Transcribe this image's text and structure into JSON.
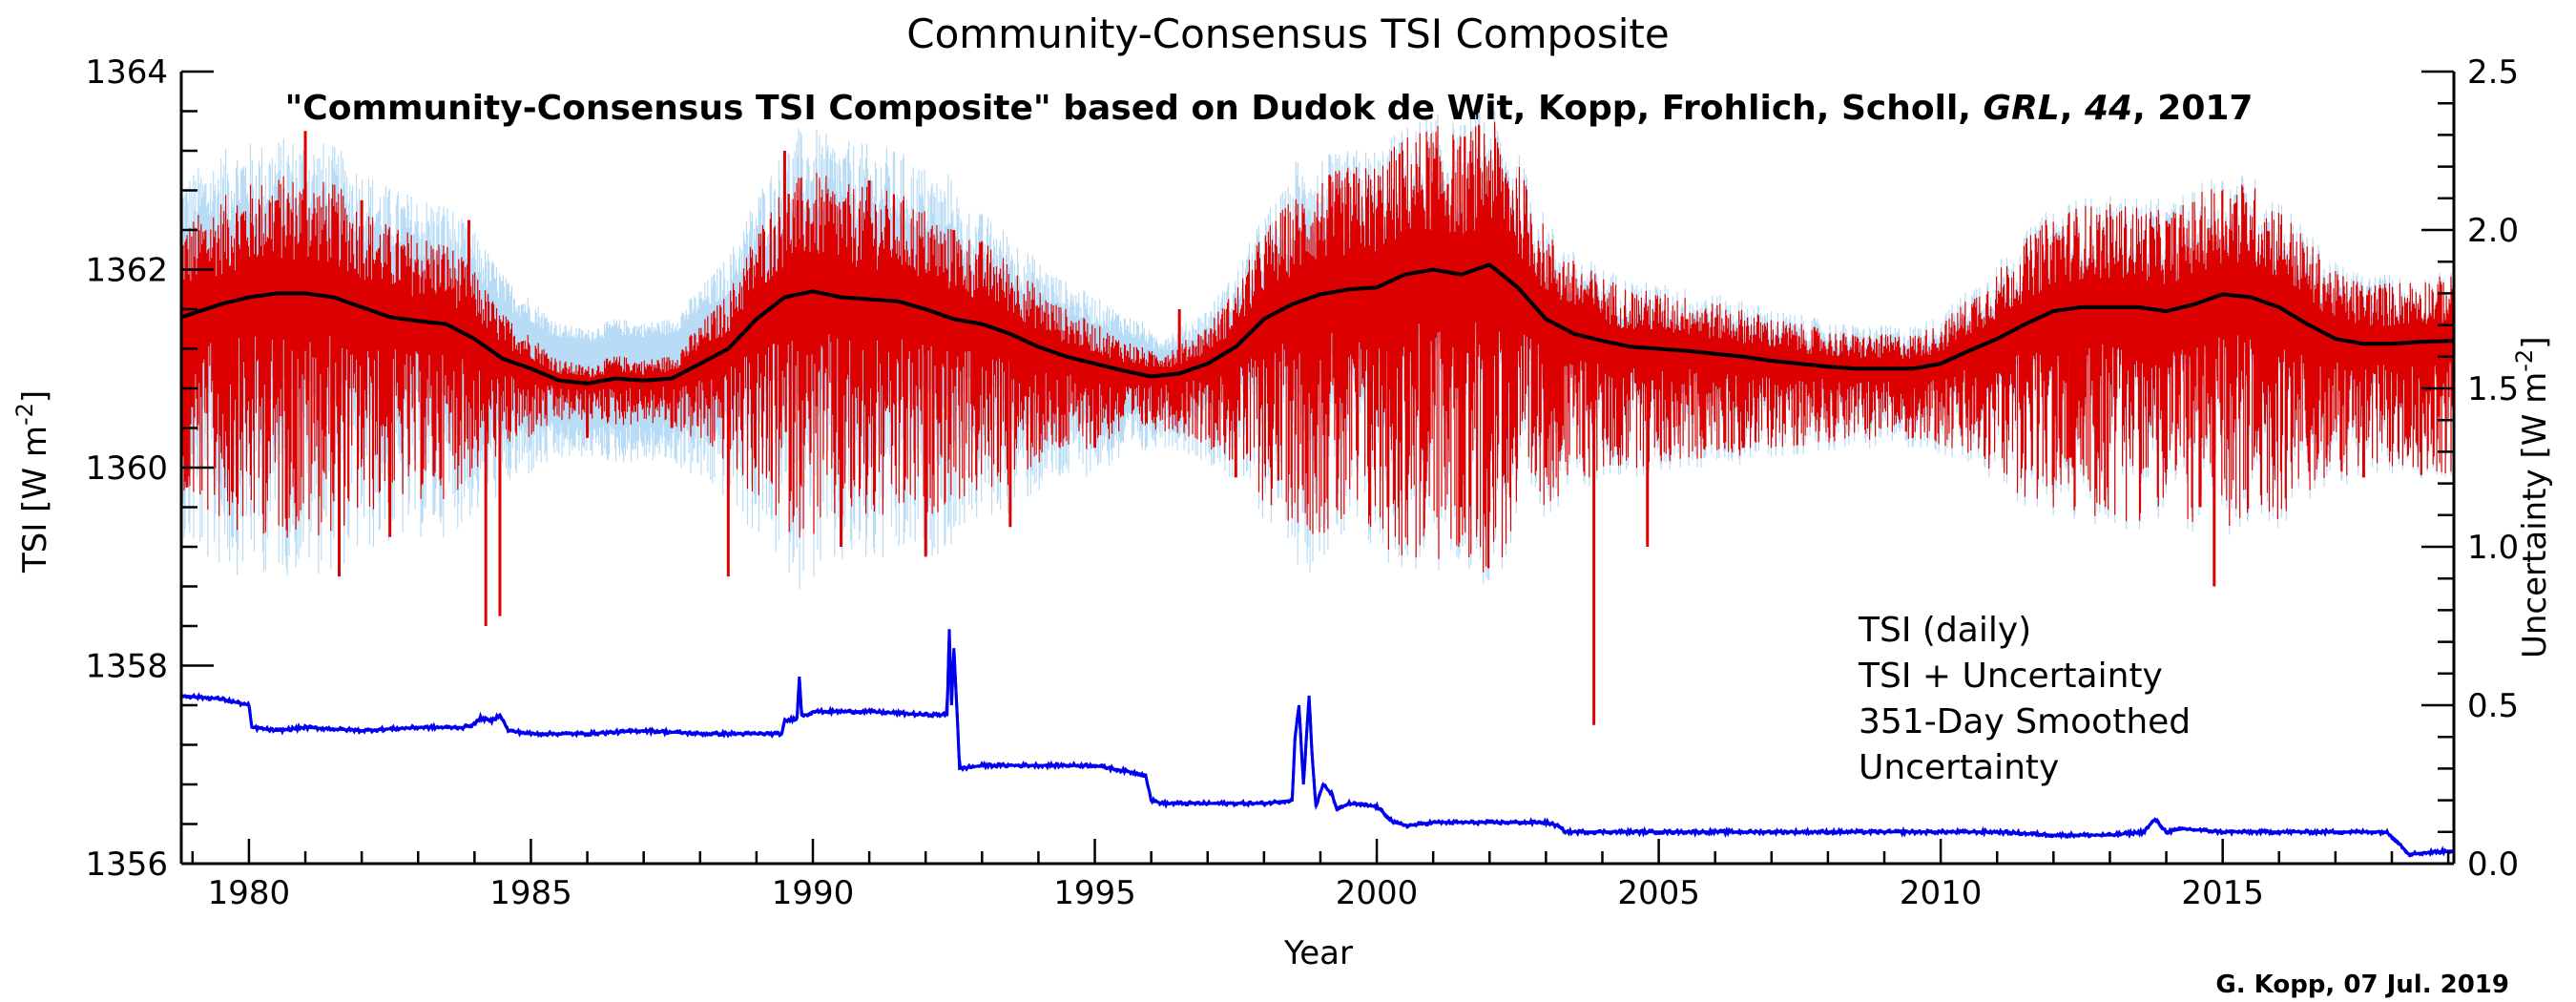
{
  "chart_data": {
    "type": "line",
    "title": "Community-Consensus TSI Composite",
    "subtitle": {
      "pre": "\"Community-Consensus TSI Composite\" based on Dudok de Wit, Kopp, Frohlich, Scholl, ",
      "journal": "GRL",
      "sep": ", ",
      "volume": "44",
      "post": ", 2017"
    },
    "xlabel": "Year",
    "ylabel": {
      "main": "TSI [W m",
      "exp": "-2",
      "close": "]"
    },
    "y2label": {
      "main": "Uncertainty [W m",
      "exp": "-2",
      "close": "]"
    },
    "credit": "G. Kopp, 07 Jul. 2019",
    "xlim": [
      1978.8,
      2019.1
    ],
    "ylim": [
      1356,
      1364
    ],
    "y2lim": [
      0,
      2.5
    ],
    "xticks": [
      "1980",
      "1985",
      "1990",
      "1995",
      "2000",
      "2005",
      "2010",
      "2015"
    ],
    "yticks": [
      "1356",
      "1358",
      "1360",
      "1362",
      "1364"
    ],
    "y2ticks": [
      "0.0",
      "0.5",
      "1.0",
      "1.5",
      "2.0",
      "2.5"
    ],
    "legend": {
      "position": "right-middle",
      "entries": [
        {
          "label": "TSI (daily)",
          "color": "#dd0000"
        },
        {
          "label": "TSI + Uncertainty",
          "color": "#b8dcf5"
        },
        {
          "label": "351-Day Smoothed",
          "color": "#000000"
        },
        {
          "label": "Uncertainty",
          "color": "#0000ee"
        }
      ]
    },
    "series": [
      {
        "name": "351-Day Smoothed",
        "axis": "left",
        "color": "#000000",
        "x": [
          1978.8,
          1979.5,
          1980,
          1980.5,
          1981,
          1981.5,
          1982,
          1982.5,
          1983,
          1983.5,
          1984,
          1984.5,
          1985,
          1985.5,
          1986,
          1986.5,
          1987,
          1987.5,
          1988,
          1988.5,
          1989,
          1989.5,
          1990,
          1990.5,
          1991,
          1991.5,
          1992,
          1992.5,
          1993,
          1993.5,
          1994,
          1994.5,
          1995,
          1995.5,
          1996,
          1996.5,
          1997,
          1997.5,
          1998,
          1998.5,
          1999,
          1999.5,
          2000,
          2000.5,
          2001,
          2001.5,
          2002,
          2002.5,
          2003,
          2003.5,
          2004,
          2004.5,
          2005,
          2005.5,
          2006,
          2006.5,
          2007,
          2007.5,
          2008,
          2008.5,
          2009,
          2009.5,
          2010,
          2010.5,
          2011,
          2011.5,
          2012,
          2012.5,
          2013,
          2013.5,
          2014,
          2014.5,
          2015,
          2015.5,
          2016,
          2016.5,
          2017,
          2017.5,
          2018,
          2018.5,
          2019,
          2019.1
        ],
        "values": [
          1361.52,
          1361.65,
          1361.72,
          1361.76,
          1361.76,
          1361.72,
          1361.62,
          1361.52,
          1361.48,
          1361.45,
          1361.3,
          1361.1,
          1361.0,
          1360.88,
          1360.85,
          1360.9,
          1360.88,
          1360.9,
          1361.05,
          1361.2,
          1361.5,
          1361.72,
          1361.78,
          1361.72,
          1361.7,
          1361.68,
          1361.6,
          1361.5,
          1361.45,
          1361.35,
          1361.22,
          1361.12,
          1361.05,
          1360.98,
          1360.92,
          1360.95,
          1361.05,
          1361.22,
          1361.5,
          1361.65,
          1361.75,
          1361.8,
          1361.82,
          1361.95,
          1362.0,
          1361.95,
          1362.05,
          1361.82,
          1361.5,
          1361.35,
          1361.28,
          1361.22,
          1361.2,
          1361.18,
          1361.15,
          1361.12,
          1361.08,
          1361.05,
          1361.02,
          1361.0,
          1361.0,
          1361.0,
          1361.05,
          1361.18,
          1361.3,
          1361.45,
          1361.58,
          1361.62,
          1361.62,
          1361.62,
          1361.58,
          1361.65,
          1361.75,
          1361.72,
          1361.62,
          1361.45,
          1361.3,
          1361.25,
          1361.25,
          1361.27,
          1361.28,
          1361.28
        ]
      },
      {
        "name": "Uncertainty",
        "axis": "right",
        "color": "#0000ee",
        "x": [
          1978.8,
          1979.5,
          1980,
          1980.05,
          1980.5,
          1981,
          1982,
          1983,
          1983.8,
          1984,
          1984.1,
          1984.3,
          1984.45,
          1984.6,
          1985,
          1986,
          1987,
          1988,
          1989,
          1989.45,
          1989.5,
          1989.72,
          1989.76,
          1989.8,
          1989.9,
          1990,
          1991,
          1992,
          1992.38,
          1992.42,
          1992.46,
          1992.5,
          1992.56,
          1992.6,
          1993,
          1994,
          1995,
          1995.9,
          1996,
          1996.2,
          1997,
          1998,
          1998.5,
          1998.55,
          1998.62,
          1998.7,
          1998.8,
          1998.85,
          1998.92,
          1999.05,
          1999.2,
          1999.3,
          1999.5,
          2000,
          2000.3,
          2000.55,
          2001,
          2002,
          2003,
          2003.2,
          2003.35,
          2004,
          2005,
          2006,
          2007,
          2008,
          2009,
          2010,
          2011,
          2012,
          2013,
          2013.6,
          2013.8,
          2014,
          2014.3,
          2015,
          2016,
          2017,
          2017.9,
          2018.1,
          2018.3,
          2019,
          2019.1
        ],
        "values": [
          0.53,
          0.52,
          0.5,
          0.43,
          0.42,
          0.43,
          0.42,
          0.43,
          0.43,
          0.44,
          0.46,
          0.45,
          0.47,
          0.42,
          0.41,
          0.41,
          0.42,
          0.41,
          0.41,
          0.41,
          0.45,
          0.46,
          0.59,
          0.47,
          0.47,
          0.48,
          0.48,
          0.47,
          0.47,
          0.74,
          0.5,
          0.68,
          0.47,
          0.3,
          0.31,
          0.31,
          0.31,
          0.28,
          0.2,
          0.19,
          0.19,
          0.19,
          0.2,
          0.4,
          0.5,
          0.25,
          0.53,
          0.35,
          0.18,
          0.25,
          0.22,
          0.17,
          0.19,
          0.18,
          0.13,
          0.12,
          0.13,
          0.13,
          0.13,
          0.12,
          0.1,
          0.1,
          0.1,
          0.1,
          0.1,
          0.1,
          0.1,
          0.1,
          0.1,
          0.09,
          0.09,
          0.1,
          0.14,
          0.1,
          0.11,
          0.1,
          0.1,
          0.1,
          0.1,
          0.07,
          0.03,
          0.04,
          0.04
        ]
      },
      {
        "name": "TSI (daily)",
        "axis": "left",
        "color": "#dd0000",
        "style": "daily spikes around the 351-day smoothed curve",
        "x": [
          1978.9,
          1980.5,
          1981.0,
          1981.6,
          1982.0,
          1982.5,
          1983.9,
          1984.2,
          1984.45,
          1986.0,
          1987.5,
          1988.5,
          1989.5,
          1989.7,
          1990.5,
          1991.0,
          1991.3,
          1992.0,
          1992.5,
          1993.5,
          1995.0,
          1996.5,
          1997.5,
          1999.0,
          2000.2,
          2000.8,
          2001.5,
          2002.0,
          2003.0,
          2003.85,
          2004.8,
          2005.5,
          2006.5,
          2008.0,
          2009.5,
          2011.5,
          2012.3,
          2013.5,
          2014.6,
          2014.85,
          2015.5,
          2016.5,
          2017.5,
          2018.5
        ],
        "values": [
          1359.8,
          1362.7,
          1363.4,
          1358.9,
          1362.7,
          1359.3,
          1362.5,
          1358.4,
          1358.5,
          1360.3,
          1360.4,
          1358.9,
          1363.2,
          1362.1,
          1359.2,
          1362.9,
          1360.6,
          1359.1,
          1362.4,
          1359.4,
          1360.2,
          1361.6,
          1359.9,
          1362.3,
          1359.6,
          1362.8,
          1359.6,
          1362.9,
          1360.0,
          1357.4,
          1359.2,
          1361.5,
          1360.2,
          1361.1,
          1360.5,
          1362.0,
          1360.1,
          1361.7,
          1359.6,
          1358.8,
          1362.4,
          1360.3,
          1359.9,
          1361.4
        ]
      }
    ]
  }
}
